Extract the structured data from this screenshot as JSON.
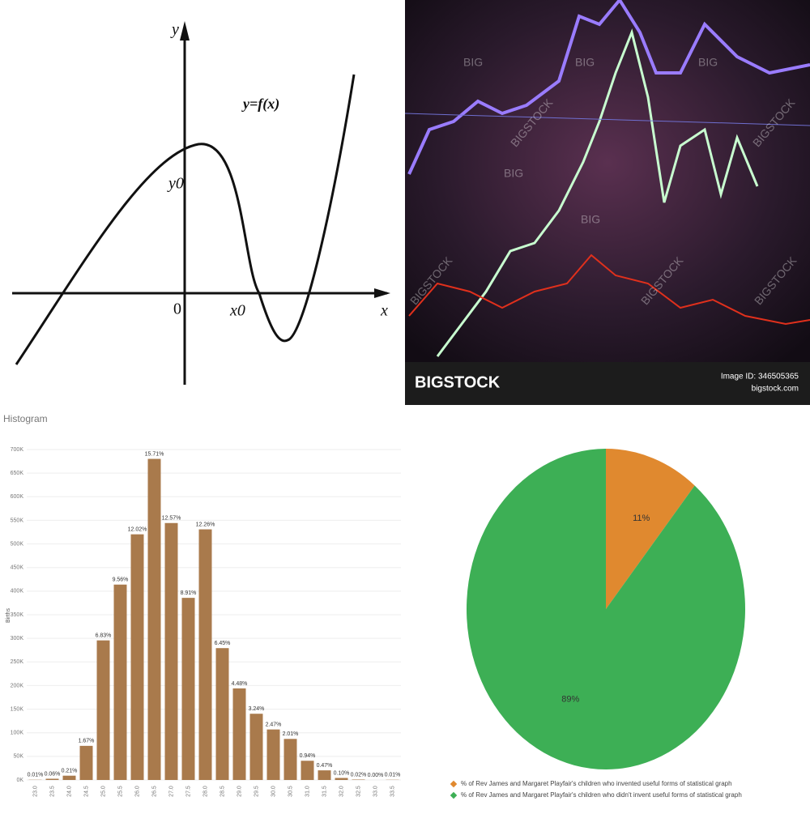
{
  "diagram": {
    "y_axis": "y",
    "function": "y=f(x)",
    "y0": "y0",
    "origin": "0",
    "x0": "x0",
    "x_axis": "x"
  },
  "photo": {
    "brand": "BIGSTOCK",
    "image_id": "Image ID: 346505365",
    "site": "bigstock.com",
    "watermarks": [
      "BIG",
      "BIG",
      "BIG",
      "BIG",
      "BIG",
      "BIGSTOCK",
      "BIGSTOCK",
      "BIGSTOCK",
      "BIGSTOCK",
      "BIGSTOCK"
    ]
  },
  "chart_data": [
    {
      "type": "bar",
      "title": "Histogram",
      "y_label": "Births",
      "color": "#a97a4c",
      "grid": true,
      "categories": [
        "23.0",
        "23.5",
        "24.0",
        "24.5",
        "25.0",
        "25.5",
        "26.0",
        "26.5",
        "27.0",
        "27.5",
        "28.0",
        "28.5",
        "29.0",
        "29.5",
        "30.0",
        "30.5",
        "31.0",
        "31.5",
        "32.0",
        "32.5",
        "33.0",
        "33.5"
      ],
      "values": [
        433,
        2600,
        9100,
        72300,
        295700,
        413900,
        520400,
        680200,
        544300,
        385800,
        530900,
        279300,
        194000,
        140300,
        107000,
        87000,
        40700,
        20400,
        4300,
        900,
        0,
        433
      ],
      "percent_labels": [
        "0.01%",
        "0.06%",
        "0.21%",
        "1.67%",
        "6.83%",
        "9.56%",
        "12.02%",
        "15.71%",
        "12.57%",
        "8.91%",
        "12.26%",
        "6.45%",
        "4.48%",
        "3.24%",
        "2.47%",
        "2.01%",
        "0.94%",
        "0.47%",
        "0.10%",
        "0.02%",
        "0.00%",
        "0.01%"
      ],
      "ylim": [
        0,
        700000
      ],
      "yticks": [
        {
          "value": 0,
          "label": "0K"
        },
        {
          "value": 50000,
          "label": "50K"
        },
        {
          "value": 100000,
          "label": "100K"
        },
        {
          "value": 150000,
          "label": "150K"
        },
        {
          "value": 200000,
          "label": "200K"
        },
        {
          "value": 250000,
          "label": "250K"
        },
        {
          "value": 300000,
          "label": "300K"
        },
        {
          "value": 350000,
          "label": "350K"
        },
        {
          "value": 400000,
          "label": "400K"
        },
        {
          "value": 450000,
          "label": "450K"
        },
        {
          "value": 500000,
          "label": "500K"
        },
        {
          "value": 550000,
          "label": "550K"
        },
        {
          "value": 600000,
          "label": "600K"
        },
        {
          "value": 650000,
          "label": "650K"
        },
        {
          "value": 700000,
          "label": "700K"
        }
      ]
    },
    {
      "type": "pie",
      "legend": "bottom",
      "categories": [
        "% of Rev James and Margaret Playfair's children who invented useful forms of statistical graph",
        "% of Rev James and Margaret Playfair's children who didn't invent useful forms of statistical graph"
      ],
      "values": [
        11,
        89
      ],
      "value_labels": [
        "11%",
        "89%"
      ],
      "colors": [
        "#e0892f",
        "#3daf55"
      ]
    }
  ]
}
